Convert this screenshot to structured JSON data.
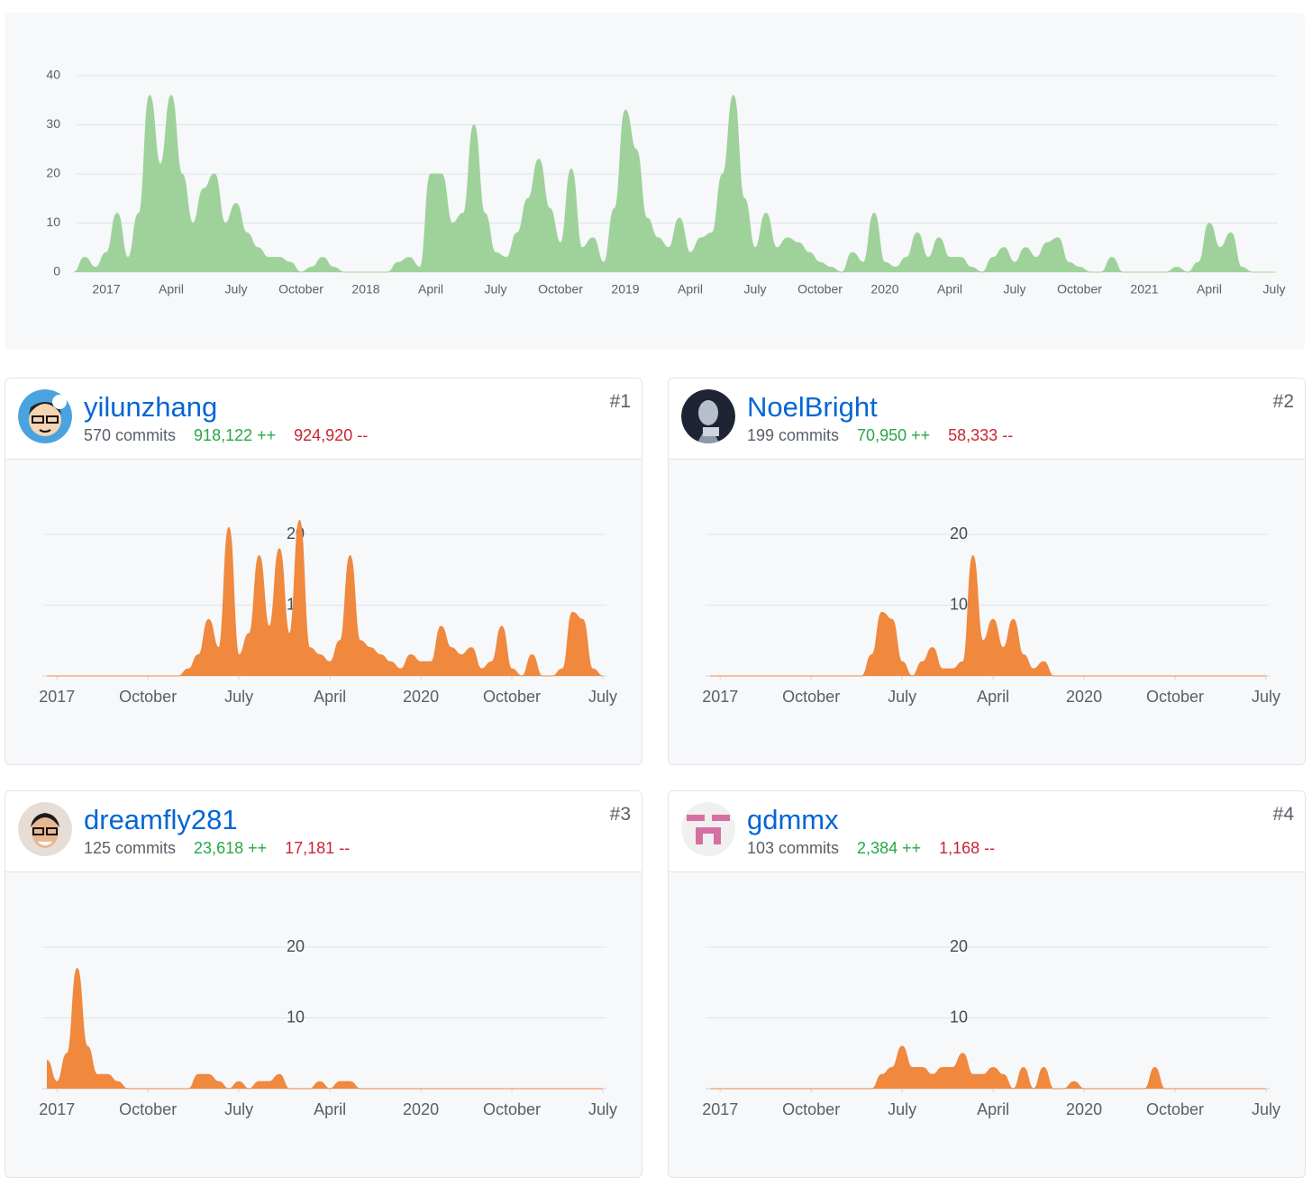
{
  "chart_data": [
    {
      "type": "area",
      "color": "#9fd29b",
      "grid": true,
      "ylim": [
        0,
        40
      ],
      "yticks": [
        0,
        10,
        20,
        30,
        40
      ],
      "categories": [
        null,
        null,
        null,
        "2017",
        null,
        null,
        null,
        null,
        null,
        "April",
        null,
        null,
        null,
        null,
        null,
        "July",
        null,
        null,
        null,
        null,
        null,
        "October",
        null,
        null,
        null,
        null,
        null,
        "2018",
        null,
        null,
        null,
        null,
        null,
        "April",
        null,
        null,
        null,
        null,
        null,
        "July",
        null,
        null,
        null,
        null,
        null,
        "October",
        null,
        null,
        null,
        null,
        null,
        "2019",
        null,
        null,
        null,
        null,
        null,
        "April",
        null,
        null,
        null,
        null,
        null,
        "July",
        null,
        null,
        null,
        null,
        null,
        "October",
        null,
        null,
        null,
        null,
        null,
        "2020",
        null,
        null,
        null,
        null,
        null,
        "April",
        null,
        null,
        null,
        null,
        null,
        "July",
        null,
        null,
        null,
        null,
        null,
        "October",
        null,
        null,
        null,
        null,
        null,
        "2021",
        null,
        null,
        null,
        null,
        null,
        "April",
        null,
        null,
        null,
        null,
        null,
        "July"
      ],
      "values": [
        0,
        3,
        1,
        4,
        12,
        3,
        12,
        36,
        22,
        36,
        20,
        10,
        17,
        20,
        10,
        14,
        8,
        5,
        3,
        3,
        2,
        0,
        1,
        3,
        1,
        0,
        0,
        0,
        0,
        0,
        2,
        3,
        1,
        20,
        20,
        10,
        12,
        30,
        12,
        4,
        3,
        8,
        15,
        23,
        13,
        6,
        21,
        5,
        7,
        2,
        13,
        33,
        25,
        11,
        7,
        5,
        11,
        4,
        7,
        8,
        20,
        36,
        15,
        5,
        12,
        5,
        7,
        6,
        4,
        2,
        1,
        0,
        4,
        2,
        12,
        2,
        1,
        3,
        8,
        3,
        7,
        3,
        3,
        1,
        0,
        3,
        5,
        2,
        5,
        3,
        6,
        7,
        2,
        1,
        0,
        0,
        3,
        0,
        0,
        0,
        0,
        0,
        1,
        0,
        2,
        10,
        5,
        8,
        1,
        0,
        0,
        0
      ]
    },
    {
      "type": "area",
      "color": "#f0883e",
      "grid": true,
      "ylim": [
        0,
        20
      ],
      "yticks": [
        10,
        20
      ],
      "categories": [
        null,
        "2017",
        null,
        null,
        null,
        null,
        null,
        null,
        null,
        null,
        "October",
        null,
        null,
        null,
        null,
        null,
        null,
        null,
        null,
        "July",
        null,
        null,
        null,
        null,
        null,
        null,
        null,
        null,
        "April",
        null,
        null,
        null,
        null,
        null,
        null,
        null,
        null,
        "2020",
        null,
        null,
        null,
        null,
        null,
        null,
        null,
        null,
        "October",
        null,
        null,
        null,
        null,
        null,
        null,
        null,
        null,
        "July"
      ],
      "values": [
        0,
        0,
        0,
        0,
        0,
        0,
        0,
        0,
        0,
        0,
        0,
        0,
        0,
        0,
        1,
        3,
        8,
        4,
        21,
        3,
        6,
        17,
        7,
        18,
        6,
        22,
        4,
        3,
        2,
        5,
        17,
        5,
        4,
        3,
        2,
        1,
        3,
        2,
        2,
        7,
        4,
        3,
        4,
        1,
        2,
        7,
        1,
        0,
        3,
        0,
        0,
        1,
        9,
        8,
        1,
        0
      ]
    },
    {
      "type": "area",
      "color": "#f0883e",
      "grid": true,
      "ylim": [
        0,
        20
      ],
      "yticks": [
        10,
        20
      ],
      "categories": [
        null,
        "2017",
        null,
        null,
        null,
        null,
        null,
        null,
        null,
        null,
        "October",
        null,
        null,
        null,
        null,
        null,
        null,
        null,
        null,
        "July",
        null,
        null,
        null,
        null,
        null,
        null,
        null,
        null,
        "April",
        null,
        null,
        null,
        null,
        null,
        null,
        null,
        null,
        "2020",
        null,
        null,
        null,
        null,
        null,
        null,
        null,
        null,
        "October",
        null,
        null,
        null,
        null,
        null,
        null,
        null,
        null,
        "July"
      ],
      "values": [
        0,
        0,
        0,
        0,
        0,
        0,
        0,
        0,
        0,
        0,
        0,
        0,
        0,
        0,
        0,
        0,
        3,
        9,
        8,
        2,
        0,
        2,
        4,
        1,
        1,
        2,
        17,
        5,
        8,
        4,
        8,
        3,
        1,
        2,
        0,
        0,
        0,
        0,
        0,
        0,
        0,
        0,
        0,
        0,
        0,
        0,
        0,
        0,
        0,
        0,
        0,
        0,
        0,
        0,
        0,
        0
      ]
    },
    {
      "type": "area",
      "color": "#f0883e",
      "grid": true,
      "ylim": [
        0,
        20
      ],
      "yticks": [
        10,
        20
      ],
      "categories": [
        null,
        "2017",
        null,
        null,
        null,
        null,
        null,
        null,
        null,
        null,
        "October",
        null,
        null,
        null,
        null,
        null,
        null,
        null,
        null,
        "July",
        null,
        null,
        null,
        null,
        null,
        null,
        null,
        null,
        "April",
        null,
        null,
        null,
        null,
        null,
        null,
        null,
        null,
        "2020",
        null,
        null,
        null,
        null,
        null,
        null,
        null,
        null,
        "October",
        null,
        null,
        null,
        null,
        null,
        null,
        null,
        null,
        "July"
      ],
      "values": [
        4,
        1,
        5,
        17,
        6,
        2,
        2,
        1,
        0,
        0,
        0,
        0,
        0,
        0,
        0,
        2,
        2,
        1,
        0,
        1,
        0,
        1,
        1,
        2,
        0,
        0,
        0,
        1,
        0,
        1,
        1,
        0,
        0,
        0,
        0,
        0,
        0,
        0,
        0,
        0,
        0,
        0,
        0,
        0,
        0,
        0,
        0,
        0,
        0,
        0,
        0,
        0,
        0,
        0,
        0,
        0
      ]
    },
    {
      "type": "area",
      "color": "#f0883e",
      "grid": true,
      "ylim": [
        0,
        20
      ],
      "yticks": [
        10,
        20
      ],
      "categories": [
        null,
        "2017",
        null,
        null,
        null,
        null,
        null,
        null,
        null,
        null,
        "October",
        null,
        null,
        null,
        null,
        null,
        null,
        null,
        null,
        "July",
        null,
        null,
        null,
        null,
        null,
        null,
        null,
        null,
        "April",
        null,
        null,
        null,
        null,
        null,
        null,
        null,
        null,
        "2020",
        null,
        null,
        null,
        null,
        null,
        null,
        null,
        null,
        "October",
        null,
        null,
        null,
        null,
        null,
        null,
        null,
        null,
        "July"
      ],
      "values": [
        0,
        0,
        0,
        0,
        0,
        0,
        0,
        0,
        0,
        0,
        0,
        0,
        0,
        0,
        0,
        0,
        0,
        2,
        3,
        6,
        3,
        3,
        2,
        3,
        3,
        5,
        2,
        2,
        3,
        2,
        0,
        3,
        0,
        3,
        0,
        0,
        1,
        0,
        0,
        0,
        0,
        0,
        0,
        0,
        3,
        0,
        0,
        0,
        0,
        0,
        0,
        0,
        0,
        0,
        0,
        0
      ]
    }
  ],
  "contributors": [
    {
      "rank": "#1",
      "name": "yilunzhang",
      "commits": "570 commits",
      "additions": "918,122 ++",
      "deletions": "924,920 --"
    },
    {
      "rank": "#2",
      "name": "NoelBright",
      "commits": "199 commits",
      "additions": "70,950 ++",
      "deletions": "58,333 --"
    },
    {
      "rank": "#3",
      "name": "dreamfly281",
      "commits": "125 commits",
      "additions": "23,618 ++",
      "deletions": "17,181 --"
    },
    {
      "rank": "#4",
      "name": "gdmmx",
      "commits": "103 commits",
      "additions": "2,384 ++",
      "deletions": "1,168 --"
    }
  ]
}
